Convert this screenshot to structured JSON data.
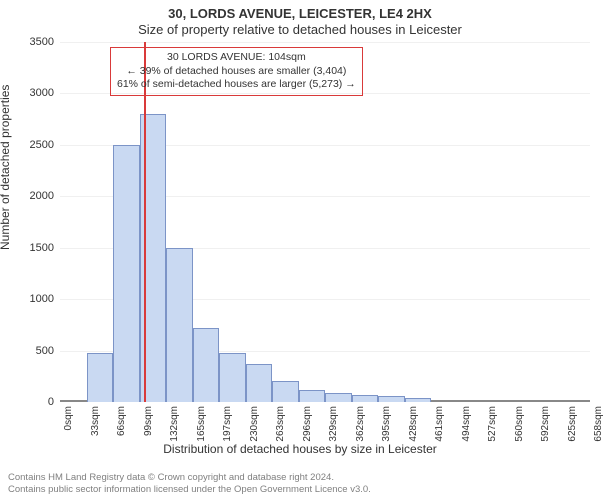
{
  "title": "30, LORDS AVENUE, LEICESTER, LE4 2HX",
  "subtitle": "Size of property relative to detached houses in Leicester",
  "ylabel": "Number of detached properties",
  "xlabel": "Distribution of detached houses by size in Leicester",
  "chart": {
    "type": "histogram",
    "background_color": "#ffffff",
    "grid_color": "#f0f0f0",
    "baseline_color": "#888888",
    "bar_fill": "#c9d9f2",
    "bar_stroke": "#7c94c7",
    "bar_stroke_width": 1,
    "marker_color": "#d93a3a",
    "marker_width": 2,
    "ylim": [
      0,
      3500
    ],
    "ytick_step": 500,
    "yticks": [
      0,
      500,
      1000,
      1500,
      2000,
      2500,
      3000,
      3500
    ],
    "x_categories": [
      "0sqm",
      "33sqm",
      "66sqm",
      "99sqm",
      "132sqm",
      "165sqm",
      "197sqm",
      "230sqm",
      "263sqm",
      "296sqm",
      "329sqm",
      "362sqm",
      "395sqm",
      "428sqm",
      "461sqm",
      "494sqm",
      "527sqm",
      "560sqm",
      "592sqm",
      "625sqm",
      "658sqm"
    ],
    "values": [
      0,
      480,
      2500,
      2800,
      1500,
      720,
      480,
      370,
      200,
      120,
      90,
      70,
      55,
      40,
      0,
      0,
      0,
      0,
      0,
      0
    ],
    "marker_x": 104,
    "label_fontsize": 12,
    "tick_fontsize": 11
  },
  "annotation": {
    "lines": [
      "30 LORDS AVENUE: 104sqm",
      "← 39% of detached houses are smaller (3,404)",
      "61% of semi-detached houses are larger (5,273) →"
    ],
    "border_color": "#d93a3a",
    "text_color": "#333333",
    "fontsize": 10.5
  },
  "footer": {
    "lines": [
      "Contains HM Land Registry data © Crown copyright and database right 2024.",
      "Contains public sector information licensed under the Open Government Licence v3.0."
    ],
    "color": "#808080",
    "fontsize": 9.5
  }
}
